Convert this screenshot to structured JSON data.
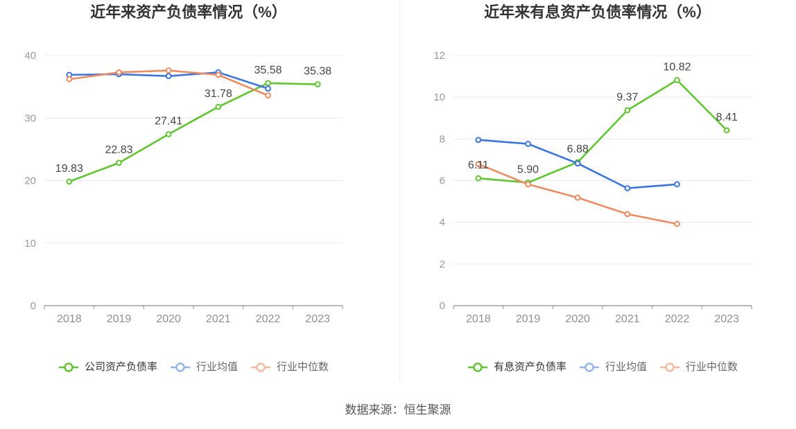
{
  "source": "数据来源：恒生聚源",
  "chart_data": [
    {
      "type": "line",
      "title": "近年来资产负债率情况（%）",
      "categories": [
        "2018",
        "2019",
        "2020",
        "2021",
        "2022",
        "2023"
      ],
      "ylim": [
        0,
        40
      ],
      "yticks": [
        0,
        10,
        20,
        30,
        40
      ],
      "grid": true,
      "legend": "bottom",
      "series": [
        {
          "name": "公司资产负债率",
          "color": "#5fc52f",
          "legend_color": "#5fc52f",
          "values": [
            19.83,
            22.83,
            27.41,
            31.78,
            35.58,
            35.38
          ],
          "data_labels": true
        },
        {
          "name": "行业均值",
          "color": "#3b75e0",
          "legend_color": "#94b4ef",
          "values": [
            36.9,
            37.0,
            36.7,
            37.3,
            34.7,
            null
          ],
          "data_labels": false
        },
        {
          "name": "行业中位数",
          "color": "#ee8a60",
          "legend_color": "#f5b8a0",
          "values": [
            36.2,
            37.3,
            37.6,
            36.9,
            33.6,
            null
          ],
          "data_labels": false
        }
      ]
    },
    {
      "type": "line",
      "title": "近年来有息资产负债率情况（%）",
      "categories": [
        "2018",
        "2019",
        "2020",
        "2021",
        "2022",
        "2023"
      ],
      "ylim": [
        0,
        12
      ],
      "yticks": [
        0,
        2,
        4,
        6,
        8,
        10,
        12
      ],
      "grid": true,
      "legend": "bottom",
      "series": [
        {
          "name": "有息资产负债率",
          "color": "#5fc52f",
          "legend_color": "#5fc52f",
          "values": [
            6.11,
            5.9,
            6.88,
            9.37,
            10.82,
            8.41
          ],
          "data_labels": true
        },
        {
          "name": "行业均值",
          "color": "#3b75e0",
          "legend_color": "#94b4ef",
          "values": [
            7.95,
            7.76,
            6.82,
            5.63,
            5.82,
            null
          ],
          "data_labels": false
        },
        {
          "name": "行业中位数",
          "color": "#ee8a60",
          "legend_color": "#f5b8a0",
          "values": [
            6.79,
            5.82,
            5.18,
            4.39,
            3.92,
            null
          ],
          "data_labels": false
        }
      ]
    }
  ]
}
